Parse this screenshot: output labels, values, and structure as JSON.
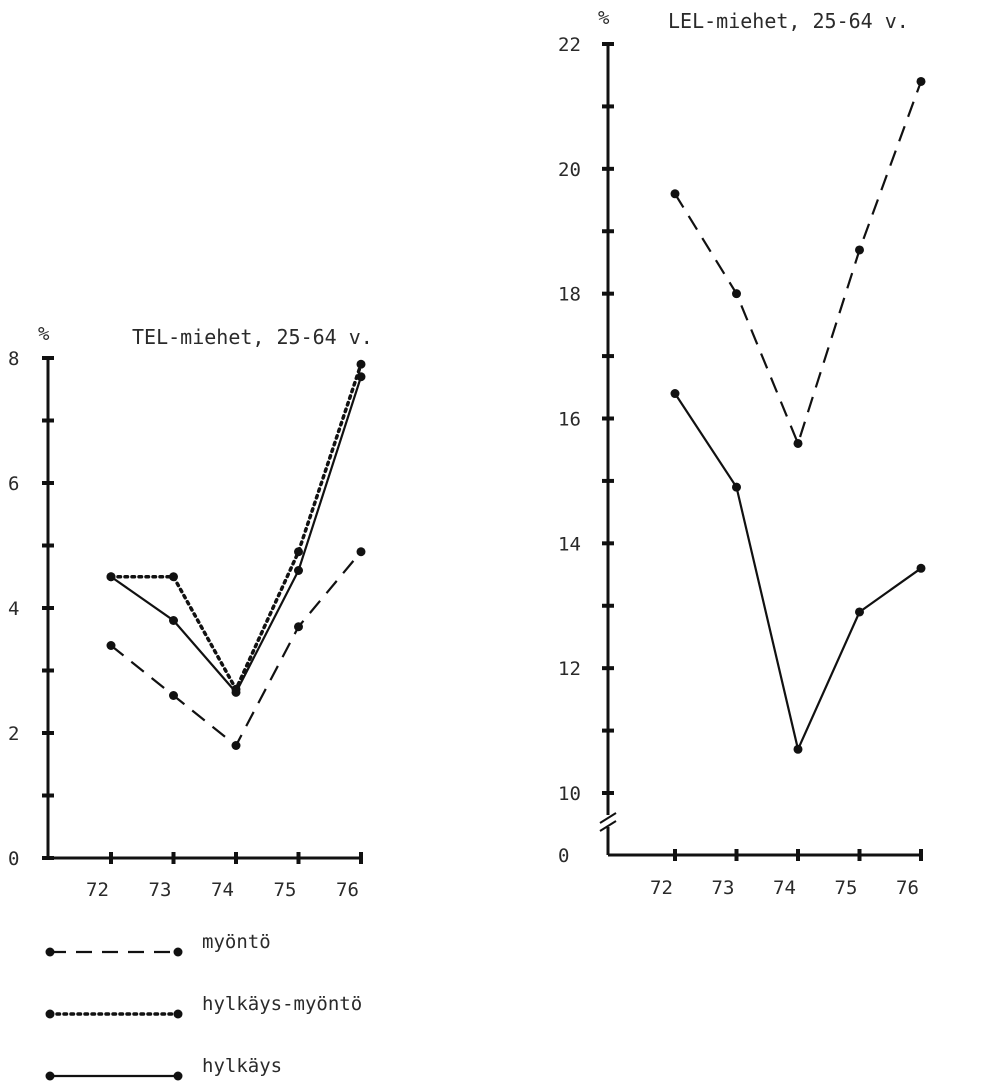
{
  "chart_data": [
    {
      "type": "line",
      "title": "TEL-miehet, 25-64 v.",
      "ylabel": "%",
      "ylim": [
        0,
        8
      ],
      "yticks": [
        "0",
        "2",
        "4",
        "6",
        "8"
      ],
      "categories": [
        "72",
        "73",
        "74",
        "75",
        "76"
      ],
      "series": [
        {
          "name": "myöntö",
          "style": "dashed",
          "values": [
            3.4,
            2.6,
            1.8,
            3.7,
            4.9
          ]
        },
        {
          "name": "hylkäys-myöntö",
          "style": "dotted",
          "values": [
            4.5,
            4.5,
            2.7,
            4.9,
            7.9
          ]
        },
        {
          "name": "hylkäys",
          "style": "solid",
          "values": [
            4.5,
            3.8,
            2.65,
            4.6,
            7.7
          ]
        }
      ]
    },
    {
      "type": "line",
      "title": "LEL-miehet, 25-64 v.",
      "ylabel": "%",
      "ylim": [
        10,
        22
      ],
      "axis_break": true,
      "yticks": [
        "0",
        "10",
        "12",
        "14",
        "16",
        "18",
        "20",
        "22"
      ],
      "categories": [
        "72",
        "73",
        "74",
        "75",
        "76"
      ],
      "series": [
        {
          "name": "myöntö",
          "style": "dashed",
          "values": [
            19.6,
            18.0,
            15.6,
            18.7,
            21.4
          ]
        },
        {
          "name": "hylkäys",
          "style": "solid",
          "values": [
            16.4,
            14.9,
            10.7,
            12.9,
            13.6
          ]
        }
      ]
    }
  ],
  "legend": [
    {
      "label": "myöntö",
      "style": "dashed"
    },
    {
      "label": "hylkäys-myöntö",
      "style": "dotted"
    },
    {
      "label": "hylkäys",
      "style": "solid"
    }
  ]
}
